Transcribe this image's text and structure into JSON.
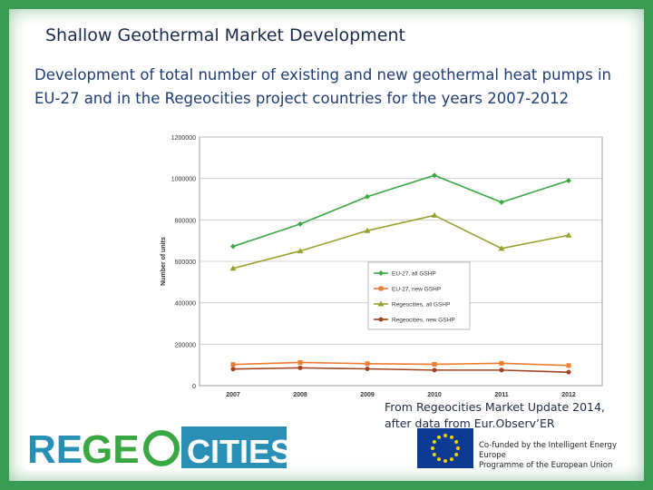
{
  "header": {
    "title": "Shallow Geothermal Market Development",
    "subtitle": "Development of total number of existing and new geothermal heat pumps in EU-27 and in the Regeocities project countries for the years 2007-2012"
  },
  "footer": {
    "source_line1": "From Regeocities Market Update 2014,",
    "source_line2": "after data from Eur.Observ’ER",
    "logo_parts": [
      "RE",
      "GE",
      "CITIES"
    ],
    "eu_text_line1": "Co-funded by the Intelligent Energy Europe",
    "eu_text_line2": "Programme of the European Union"
  },
  "chart_data": {
    "type": "line",
    "title": "",
    "xlabel": "",
    "ylabel": "Number of units",
    "categories": [
      "2007",
      "2008",
      "2009",
      "2010",
      "2011",
      "2012"
    ],
    "ylim": [
      0,
      1200000
    ],
    "yticks": [
      0,
      200000,
      400000,
      600000,
      800000,
      1000000,
      1200000
    ],
    "ytick_labels": [
      "0",
      "200000",
      "400000",
      "600000",
      "800000",
      "1000000",
      "1200000"
    ],
    "legend_position": "center-right",
    "series": [
      {
        "name": "EU-27, all GSHP",
        "color": "#3aa842",
        "marker": "diamond",
        "values": [
          672000,
          780000,
          912000,
          1015000,
          885000,
          990000
        ]
      },
      {
        "name": "EU-27, new GSHP",
        "color": "#ec7c30",
        "marker": "square",
        "values": [
          102000,
          112000,
          106000,
          103000,
          108000,
          97000
        ]
      },
      {
        "name": "Regeocities, all GSHP",
        "color": "#99a12d",
        "marker": "triangle",
        "values": [
          566000,
          650000,
          748000,
          822000,
          662000,
          726000
        ]
      },
      {
        "name": "Regeocities, new GSHP",
        "color": "#a0421e",
        "marker": "circle",
        "values": [
          80000,
          86000,
          81000,
          75000,
          75000,
          65000
        ]
      }
    ]
  }
}
